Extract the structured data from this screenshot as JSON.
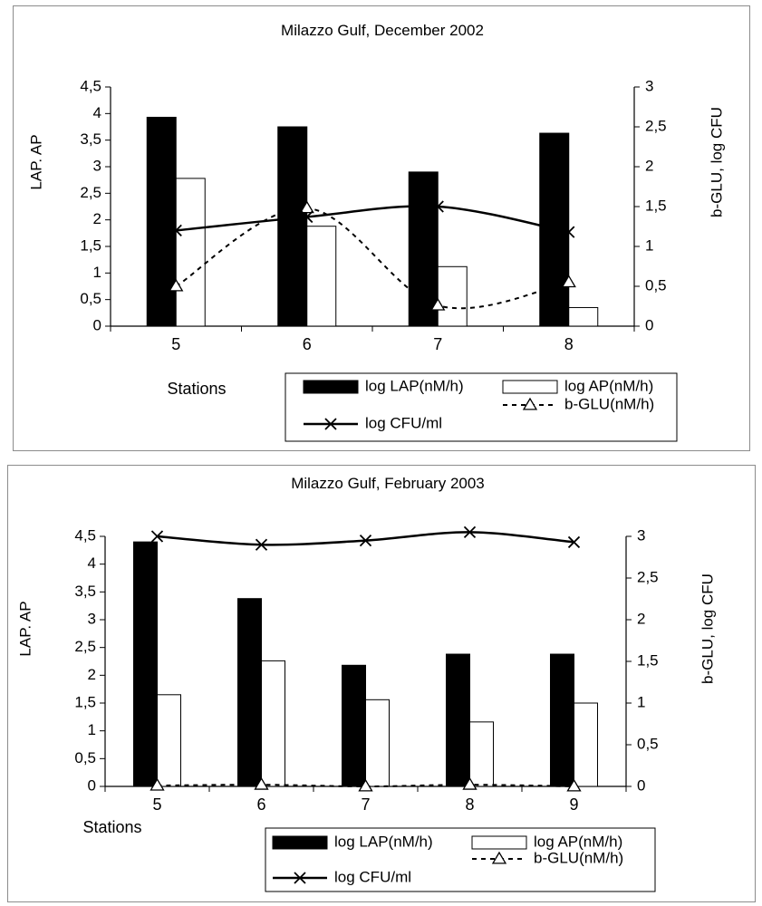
{
  "charts_meta": {
    "y_tick_decimal_separator": ","
  },
  "chart_data": [
    {
      "type": "bar",
      "title": "Milazzo Gulf, December 2002",
      "xlabel": "Stations",
      "ylabel_left": "LAP. AP",
      "ylabel_right": "b-GLU, log CFU",
      "categories": [
        "5",
        "6",
        "7",
        "8"
      ],
      "ylim_left": [
        0,
        4.5
      ],
      "ylim_right": [
        0,
        3
      ],
      "yticks_left": [
        "0",
        "0,5",
        "1",
        "1,5",
        "2",
        "2,5",
        "3",
        "3,5",
        "4",
        "4,5"
      ],
      "yticks_right": [
        "0",
        "0,5",
        "1",
        "1,5",
        "2",
        "2,5",
        "3"
      ],
      "grid": false,
      "legend_position": "bottom-right",
      "series": [
        {
          "name": "log LAP(nM/h)",
          "type": "bar",
          "axis": "left",
          "color": "#000000",
          "values": [
            3.93,
            3.75,
            2.9,
            3.63
          ]
        },
        {
          "name": "log AP(nM/h)",
          "type": "bar",
          "axis": "left",
          "color": "#ffffff",
          "values": [
            2.78,
            1.88,
            1.12,
            0.35
          ]
        },
        {
          "name": "b-GLU(nM/h)",
          "type": "line",
          "axis": "right",
          "style": "dashed",
          "marker": "triangle",
          "values": [
            0.5,
            1.48,
            0.26,
            0.55
          ]
        },
        {
          "name": "log CFU/ml",
          "type": "line",
          "axis": "right",
          "style": "solid",
          "marker": "x",
          "values": [
            1.2,
            1.37,
            1.5,
            1.18
          ]
        }
      ]
    },
    {
      "type": "bar",
      "title": "Milazzo Gulf, February 2003",
      "xlabel": "Stations",
      "ylabel_left": "LAP. AP",
      "ylabel_right": "b-GLU, log CFU",
      "categories": [
        "5",
        "6",
        "7",
        "8",
        "9"
      ],
      "ylim_left": [
        0,
        4.5
      ],
      "ylim_right": [
        0,
        3
      ],
      "yticks_left": [
        "0",
        "0,5",
        "1",
        "1,5",
        "2",
        "2,5",
        "3",
        "3,5",
        "4",
        "4,5"
      ],
      "yticks_right": [
        "0",
        "0,5",
        "1",
        "1,5",
        "2",
        "2,5",
        "3"
      ],
      "grid": false,
      "legend_position": "bottom-right",
      "series": [
        {
          "name": "log LAP(nM/h)",
          "type": "bar",
          "axis": "left",
          "color": "#000000",
          "values": [
            4.4,
            3.38,
            2.18,
            2.38,
            2.38
          ]
        },
        {
          "name": "log AP(nM/h)",
          "type": "bar",
          "axis": "left",
          "color": "#ffffff",
          "values": [
            1.65,
            2.26,
            1.56,
            1.16,
            1.5
          ]
        },
        {
          "name": "b-GLU(nM/h)",
          "type": "line",
          "axis": "right",
          "style": "dashed",
          "marker": "triangle",
          "values": [
            0.01,
            0.02,
            0.0,
            0.02,
            0.0
          ]
        },
        {
          "name": "log CFU/ml",
          "type": "line",
          "axis": "right",
          "style": "solid",
          "marker": "x",
          "values": [
            3.0,
            2.9,
            2.95,
            3.05,
            2.93
          ]
        }
      ]
    }
  ]
}
